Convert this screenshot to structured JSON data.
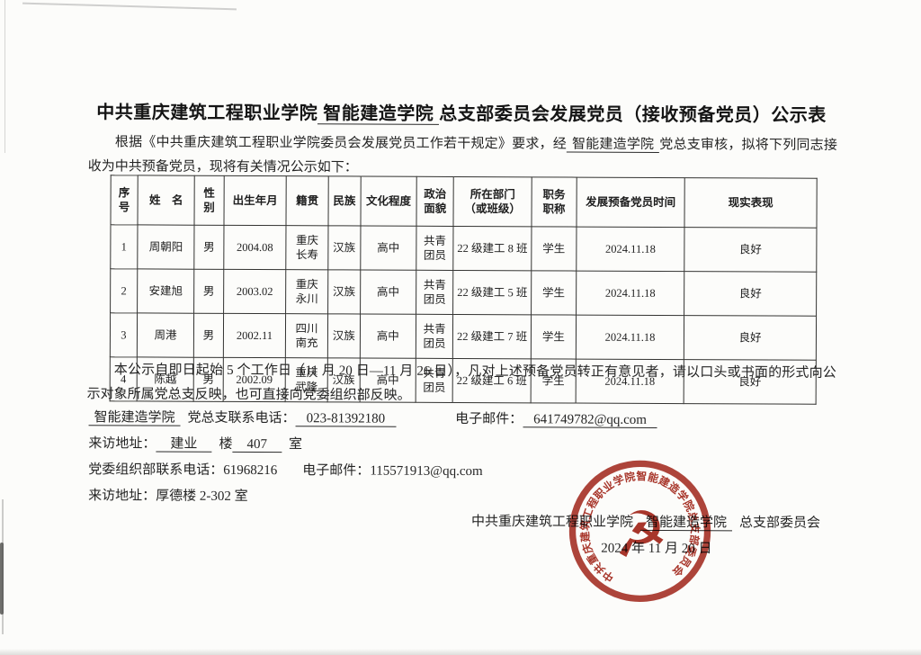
{
  "doc": {
    "title_prefix": "中共重庆建筑工程职业学院",
    "title_college": "智能建造学院",
    "title_suffix": "总支部委员会发展党员（接收预备党员）公示表",
    "intro_before": "根据《中共重庆建筑工程职业学院委员会发展党员工作若干规定》要求，经",
    "intro_college": "智能建造学院",
    "intro_after": "党总支审核，拟将下列同志接收为中共预备党员，现将有关情况公示如下：",
    "closing": "本公示自即日起始 5 个工作日（11 月 20 日—11 月 26 日），凡对上述预备党员转正有意见者，请以口头或书面的形式向公示对象所属党总支反映，也可直接向党委组织部反映。"
  },
  "table": {
    "headers": [
      "序\n号",
      "姓　名",
      "性\n别",
      "出生年月",
      "籍贯",
      "民族",
      "文化程度",
      "政治\n面貌",
      "所在部门\n（或班级）",
      "职务\n职称",
      "发展预备党员时间",
      "现实表现"
    ],
    "rows": [
      [
        "1",
        "周朝阳",
        "男",
        "2004.08",
        "重庆\n长寿",
        "汉族",
        "高中",
        "共青\n团员",
        "22 级建工 8 班",
        "学生",
        "2024.11.18",
        "良好"
      ],
      [
        "2",
        "安建旭",
        "男",
        "2003.02",
        "重庆\n永川",
        "汉族",
        "高中",
        "共青\n团员",
        "22 级建工 5 班",
        "学生",
        "2024.11.18",
        "良好"
      ],
      [
        "3",
        "周港",
        "男",
        "2002.11",
        "四川\n南充",
        "汉族",
        "高中",
        "共青\n团员",
        "22 级建工 7 班",
        "学生",
        "2024.11.18",
        "良好"
      ],
      [
        "4",
        "陈越",
        "男",
        "2002.09",
        "重庆\n武隆",
        "汉族",
        "高中",
        "共青\n团员",
        "22 级建工 6 班",
        "学生",
        "2024.11.18",
        "良好"
      ]
    ]
  },
  "contacts": {
    "college": "智能建造学院",
    "branch_phone_label": "党总支联系电话：",
    "branch_phone": "023-81392180",
    "email_label": "电子邮件：",
    "branch_email": "641749782@qq.com",
    "visit_label": "来访地址：",
    "visit_building": "建业",
    "visit_building_suffix": "楼",
    "visit_room": "407",
    "visit_room_suffix": "室",
    "org_phone_label": "党委组织部联系电话：",
    "org_phone": "61968216",
    "org_email": "115571913@qq.com",
    "org_visit": "来访地址：厚德楼 2-302 室"
  },
  "signature": {
    "prefix": "中共重庆建筑工程职业学院",
    "college": "智能建造学院",
    "suffix": "总支部委员会",
    "date": "2024 年 11 月 20 日"
  },
  "seal": {
    "ring_text": "中共重庆建筑工程职业学院智能建造学院总支部委员会",
    "emblem_glyph": "☭",
    "color": "#9e2418"
  }
}
